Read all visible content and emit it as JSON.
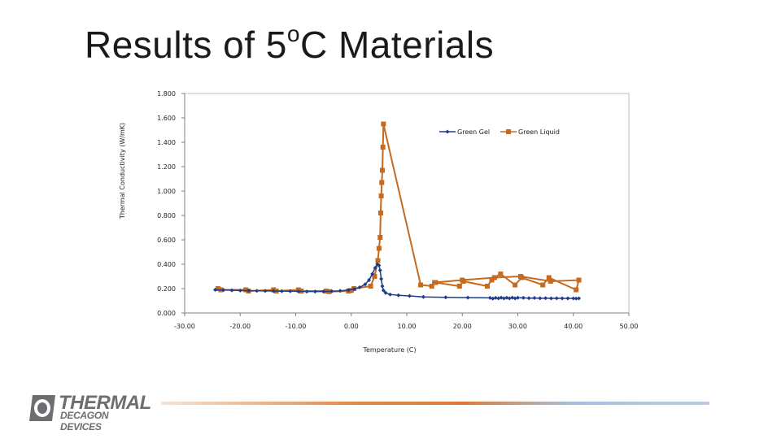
{
  "slide": {
    "title_main": "Results of 5",
    "title_sup": "o",
    "title_end": "C Materials"
  },
  "logo": {
    "line1": "THERMAL",
    "line2": "DECAGON DEVICES",
    "color": "#6d6e71"
  },
  "chart_data": {
    "type": "line",
    "title": "",
    "xlabel": "Temperature (C)",
    "ylabel": "Thermal Conductivity (W/mK)",
    "xlim": [
      -30,
      50
    ],
    "ylim": [
      0,
      1.8
    ],
    "xticks": [
      "-30.00",
      "-20.00",
      "-10.00",
      "0.00",
      "10.00",
      "20.00",
      "30.00",
      "40.00",
      "50.00"
    ],
    "yticks": [
      "0.000",
      "0.200",
      "0.400",
      "0.600",
      "0.800",
      "1.000",
      "1.200",
      "1.400",
      "1.600",
      "1.800"
    ],
    "legend_position": "top-right",
    "series": [
      {
        "name": "Green Gel",
        "color": "#1f3c88",
        "marker": "diamond",
        "x": [
          -24.5,
          -23,
          -21.5,
          -20,
          -18.5,
          -17,
          -15.5,
          -14,
          -12.5,
          -11,
          -9.5,
          -8,
          -6.5,
          -5,
          -3.5,
          -2,
          -0.5,
          0.5,
          1.5,
          2.5,
          3.2,
          3.8,
          4.3,
          4.7,
          5.0,
          5.2,
          5.4,
          5.6,
          5.8,
          6.2,
          7.0,
          8.5,
          10.5,
          13,
          17,
          21,
          25,
          25.5,
          26,
          26.5,
          27,
          27.5,
          28,
          28.5,
          29,
          29.5,
          30,
          31,
          32,
          33,
          34,
          35,
          36,
          37,
          38,
          39,
          40,
          40.5,
          41
        ],
        "y": [
          0.19,
          0.188,
          0.186,
          0.184,
          0.183,
          0.182,
          0.181,
          0.18,
          0.179,
          0.178,
          0.177,
          0.176,
          0.176,
          0.176,
          0.178,
          0.182,
          0.188,
          0.196,
          0.21,
          0.235,
          0.27,
          0.32,
          0.37,
          0.4,
          0.39,
          0.35,
          0.28,
          0.22,
          0.185,
          0.165,
          0.152,
          0.145,
          0.14,
          0.132,
          0.128,
          0.126,
          0.124,
          0.118,
          0.124,
          0.12,
          0.126,
          0.12,
          0.125,
          0.12,
          0.126,
          0.12,
          0.125,
          0.124,
          0.122,
          0.123,
          0.121,
          0.122,
          0.12,
          0.121,
          0.12,
          0.12,
          0.12,
          0.118,
          0.12
        ]
      },
      {
        "name": "Green Liquid",
        "color": "#c56a1f",
        "marker": "square",
        "x": [
          -24,
          -23.5,
          -19,
          -18.5,
          -14,
          -13.5,
          -9.5,
          -9,
          -4.5,
          -4,
          -0.5,
          0,
          0.5,
          3.5,
          4.2,
          4.8,
          5.0,
          5.2,
          5.3,
          5.4,
          5.5,
          5.6,
          5.7,
          5.8,
          12.5,
          14.5,
          15.2,
          19.5,
          20.2,
          24.5,
          25.3,
          25.8,
          26.9,
          29.5,
          30.7,
          34.5,
          35.6,
          40.5,
          41,
          35.9,
          30.5,
          25.8,
          20,
          15
        ],
        "y": [
          0.2,
          0.19,
          0.19,
          0.18,
          0.19,
          0.18,
          0.19,
          0.18,
          0.18,
          0.175,
          0.18,
          0.185,
          0.2,
          0.22,
          0.3,
          0.43,
          0.53,
          0.62,
          0.82,
          0.96,
          1.07,
          1.17,
          1.36,
          1.55,
          0.23,
          0.22,
          0.25,
          0.22,
          0.26,
          0.22,
          0.27,
          0.29,
          0.32,
          0.23,
          0.29,
          0.23,
          0.29,
          0.19,
          0.27,
          0.26,
          0.3,
          0.29,
          0.27,
          0.25
        ]
      }
    ]
  }
}
